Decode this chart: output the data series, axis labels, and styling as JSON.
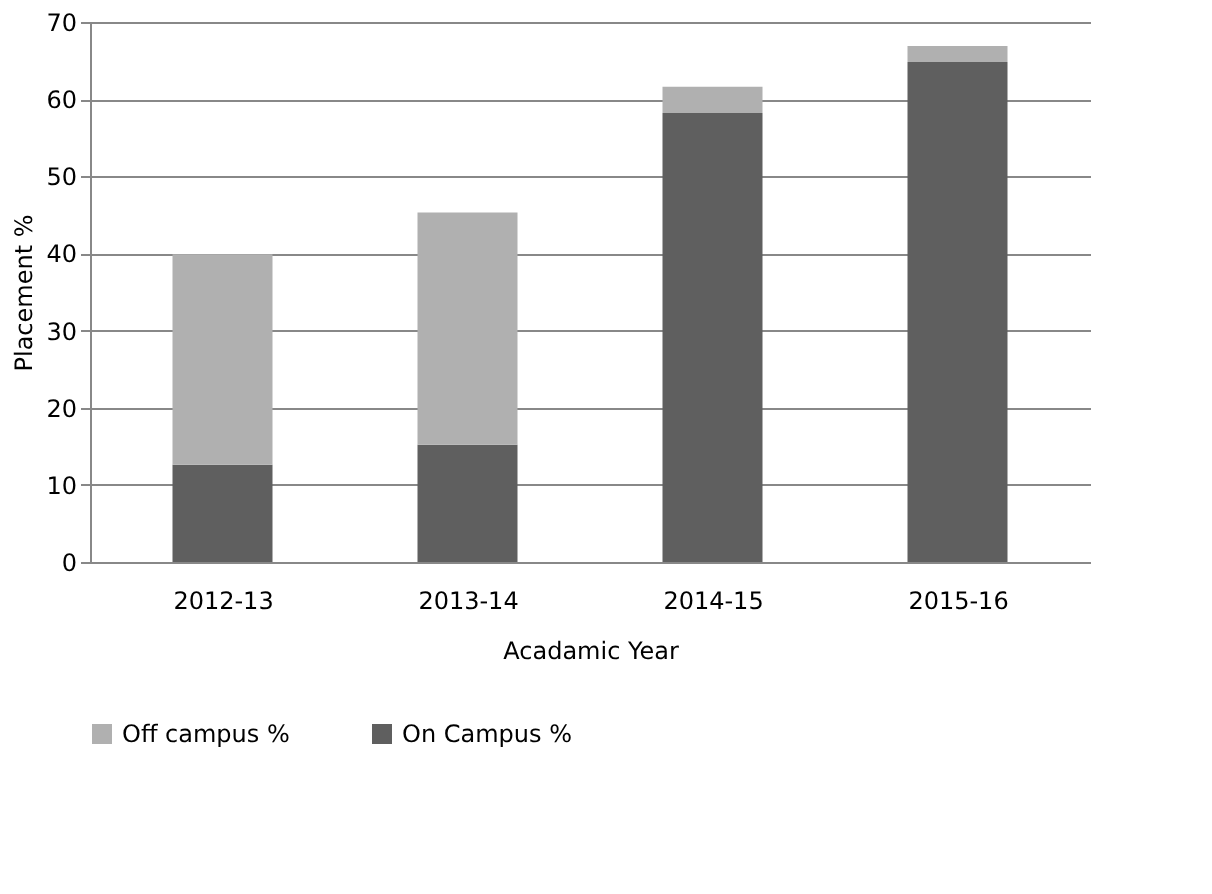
{
  "chart_data": {
    "type": "bar",
    "stacked": true,
    "xlabel": "Acadamic Year",
    "ylabel": "Placement %",
    "categories": [
      "2012-13",
      "2013-14",
      "2014-15",
      "2015-16"
    ],
    "series": [
      {
        "name": "On Campus %",
        "color": "#5f5f5f",
        "values": [
          12.6,
          15.2,
          58.2,
          64.8
        ]
      },
      {
        "name": "Off campus %",
        "color": "#b0b0b0",
        "values": [
          27.3,
          30.1,
          3.4,
          2.1
        ]
      }
    ],
    "ylim": [
      0,
      70
    ],
    "yticks": [
      0,
      10,
      20,
      30,
      40,
      50,
      60,
      70
    ],
    "grid": "y",
    "legend": "bottom"
  }
}
